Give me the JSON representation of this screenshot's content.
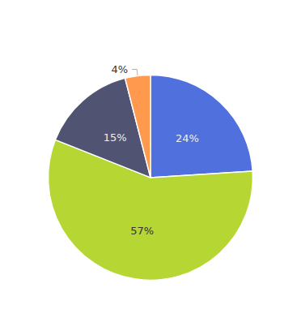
{
  "chart_data": {
    "type": "pie",
    "values": [
      24,
      57,
      15,
      4
    ],
    "value_labels": [
      "24%",
      "57%",
      "15%",
      "4%"
    ],
    "data_labels": true
  }
}
